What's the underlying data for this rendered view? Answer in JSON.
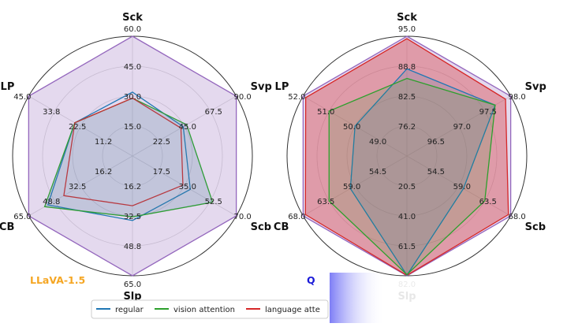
{
  "chart_data": [
    {
      "type": "radar",
      "model_label": "LLaVA-1.5",
      "model_label_color": "#f5a623",
      "axes": [
        "Sck",
        "Svp",
        "Scb",
        "Slp",
        "CB",
        "LP"
      ],
      "axis_ticks": [
        [
          "15.0",
          "30.0",
          "45.0",
          "60.0"
        ],
        [
          "22.5",
          "45.0",
          "67.5",
          "90.0"
        ],
        [
          "17.5",
          "35.0",
          "52.5",
          "70.0"
        ],
        [
          "16.2",
          "32.5",
          "48.8",
          "65.0"
        ],
        [
          "16.2",
          "32.5",
          "48.8",
          "65.0"
        ],
        [
          "11.2",
          "22.5",
          "33.8",
          "45.0"
        ]
      ],
      "axis_max": [
        60,
        90,
        70,
        65,
        65,
        45
      ],
      "series": [
        {
          "name": "regular",
          "color": "#1f77b4",
          "fill": false,
          "values": [
            32,
            44,
            39,
            35,
            53,
            25
          ]
        },
        {
          "name": "vision attention",
          "color": "#2ca02c",
          "fill": false,
          "values": [
            29,
            47,
            54,
            33,
            55,
            25
          ]
        },
        {
          "name": "language attention",
          "color": "#d62728",
          "fill": false,
          "values": [
            29,
            42,
            34,
            27,
            43,
            25
          ]
        },
        {
          "name": "",
          "color": "#9467bd",
          "fill": true,
          "values": [
            60,
            90,
            70,
            65,
            65,
            45
          ]
        }
      ]
    },
    {
      "type": "radar",
      "model_label": "Q",
      "model_label_color": "#1a1ad8",
      "axes": [
        "Sck",
        "Svp",
        "Scb",
        "Slp",
        "CB",
        "LP"
      ],
      "axis_ticks": [
        [
          "76.2",
          "82.5",
          "88.8",
          "95.0"
        ],
        [
          "96.5",
          "97.0",
          "97.5",
          "98.0"
        ],
        [
          "54.5",
          "59.0",
          "63.5",
          "68.0"
        ],
        [
          "20.5",
          "41.0",
          "61.5",
          "82.0"
        ],
        [
          "54.5",
          "59.0",
          "63.5",
          "68.0"
        ],
        [
          "49.0",
          "50.0",
          "51.0",
          "52.0"
        ]
      ],
      "axis_min": [
        70,
        96,
        50,
        0,
        50,
        48
      ],
      "axis_max": [
        95,
        98,
        68,
        82,
        68,
        52
      ],
      "series": [
        {
          "name": "regular",
          "color": "#1f77b4",
          "fill": false,
          "values": [
            88.2,
            97.7,
            59.8,
            81.6,
            59.8,
            50.0
          ]
        },
        {
          "name": "vision attention",
          "color": "#2ca02c",
          "fill": false,
          "values": [
            86.2,
            97.7,
            63.5,
            81.2,
            63.5,
            51.0
          ]
        },
        {
          "name": "language attention",
          "color": "#d62728",
          "fill": true,
          "values": [
            94.5,
            97.9,
            67.6,
            81.7,
            67.6,
            51.9
          ]
        },
        {
          "name": "",
          "color": "#9467bd",
          "fill": true,
          "values": [
            95.0,
            98.0,
            68.0,
            82.0,
            68.0,
            52.0
          ]
        }
      ]
    }
  ],
  "legend": {
    "items": [
      {
        "label": "regular",
        "color": "#1f77b4"
      },
      {
        "label": "vision attention",
        "color": "#2ca02c"
      },
      {
        "label": "language atte",
        "color": "#d62728"
      }
    ]
  }
}
